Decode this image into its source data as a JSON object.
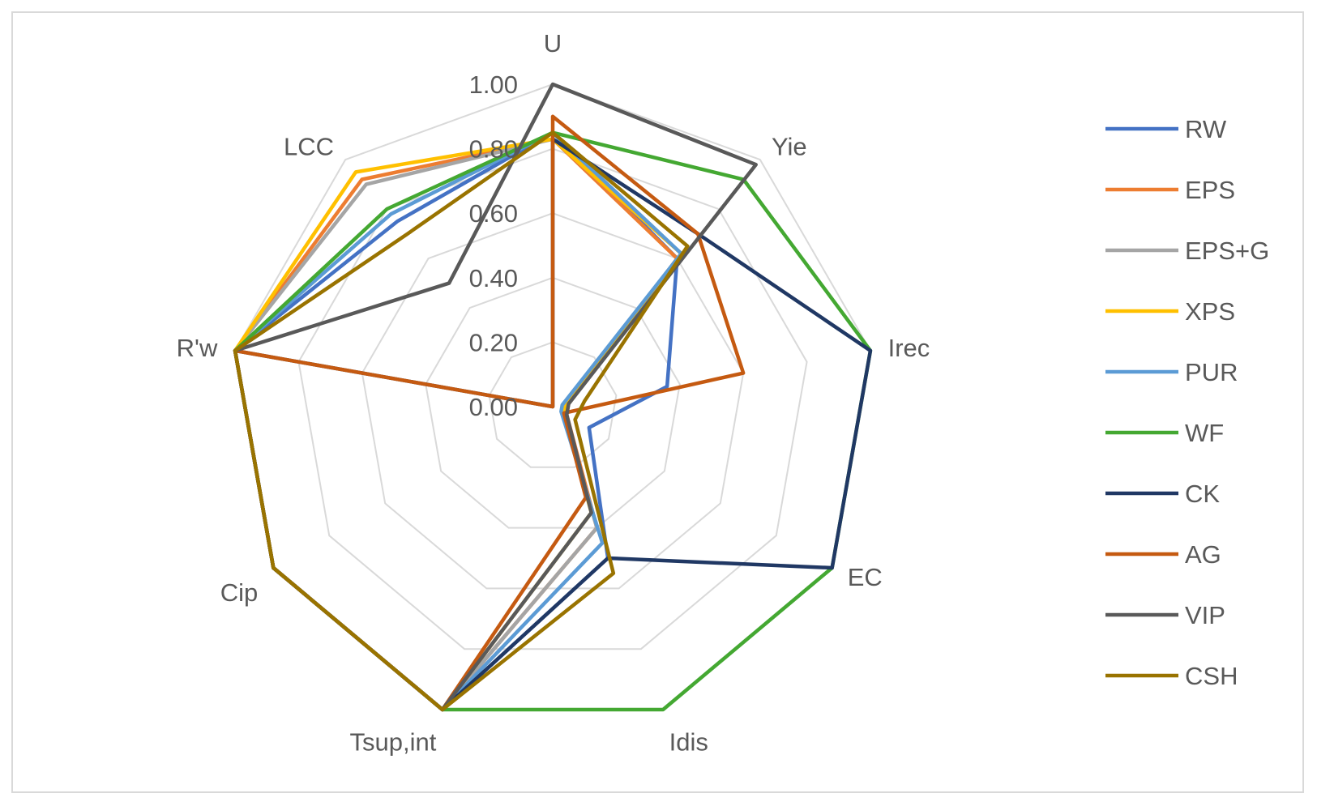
{
  "chart_data": {
    "type": "radar",
    "axes": [
      "U",
      "Yie",
      "Irec",
      "EC",
      "Idis",
      "Tsup,int",
      "Cip",
      "R'w",
      "LCC"
    ],
    "tick_labels": [
      "0.00",
      "0.20",
      "0.40",
      "0.60",
      "0.80",
      "1.00"
    ],
    "range": [
      0,
      1
    ],
    "grid": true,
    "legend_position": "right",
    "series": [
      {
        "name": "RW",
        "color": "#4472C4",
        "values": [
          0.85,
          0.6,
          0.36,
          0.13,
          0.5,
          1.0,
          1.0,
          1.0,
          0.75
        ]
      },
      {
        "name": "EPS",
        "color": "#ED7D31",
        "values": [
          0.83,
          0.6,
          0.05,
          0.05,
          0.4,
          1.0,
          1.0,
          1.0,
          0.92
        ]
      },
      {
        "name": "EPS+G",
        "color": "#A5A5A5",
        "values": [
          0.83,
          0.62,
          0.05,
          0.04,
          0.4,
          1.0,
          1.0,
          1.0,
          0.9
        ]
      },
      {
        "name": "XPS",
        "color": "#FFC000",
        "values": [
          0.83,
          0.62,
          0.04,
          0.04,
          0.35,
          1.0,
          1.0,
          1.0,
          0.95
        ]
      },
      {
        "name": "PUR",
        "color": "#5B9BD5",
        "values": [
          0.85,
          0.62,
          0.03,
          0.03,
          0.45,
          1.0,
          1.0,
          1.0,
          0.78
        ]
      },
      {
        "name": "WF",
        "color": "#44A832",
        "values": [
          0.85,
          0.92,
          1.0,
          1.0,
          1.0,
          1.0,
          1.0,
          1.0,
          0.8
        ]
      },
      {
        "name": "CK",
        "color": "#203864",
        "values": [
          0.83,
          0.7,
          1.0,
          1.0,
          0.5,
          1.0,
          1.0,
          1.0,
          0.0
        ]
      },
      {
        "name": "AG",
        "color": "#C55A11",
        "values": [
          0.9,
          0.7,
          0.6,
          0.04,
          0.3,
          1.0,
          1.0,
          1.0,
          0.0
        ]
      },
      {
        "name": "VIP",
        "color": "#595959",
        "values": [
          1.0,
          0.98,
          0.05,
          0.05,
          0.35,
          1.0,
          1.0,
          1.0,
          0.5
        ]
      },
      {
        "name": "CSH",
        "color": "#997300",
        "values": [
          0.85,
          0.65,
          0.1,
          0.08,
          0.55,
          1.0,
          1.0,
          1.0,
          0.7
        ]
      }
    ]
  }
}
